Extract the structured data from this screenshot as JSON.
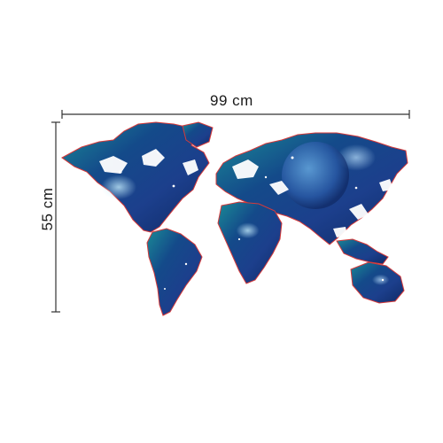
{
  "dimensions": {
    "width_label": "99 cm",
    "height_label": "55 cm"
  },
  "colors": {
    "outline": "#d63a3a",
    "ocean_deep": "#0b2a5e",
    "ocean_mid": "#1f6fb8",
    "teal": "#1e8a9a",
    "glow": "#a9e6ff"
  }
}
